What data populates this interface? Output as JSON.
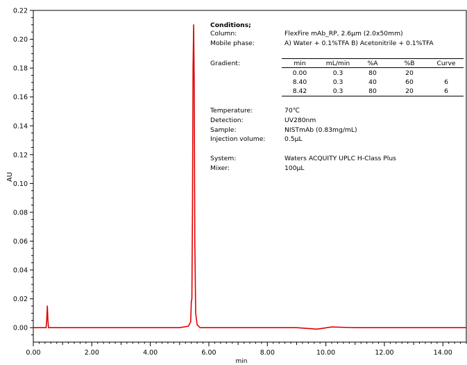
{
  "chart_data": {
    "type": "line",
    "xlabel": "min",
    "ylabel": "AU",
    "xlim": [
      0.0,
      14.8
    ],
    "ylim": [
      -0.01,
      0.22
    ],
    "x_ticks": [
      "0.00",
      "2.00",
      "4.00",
      "6.00",
      "8.00",
      "10.00",
      "12.00",
      "14.00"
    ],
    "y_ticks": [
      "0.00",
      "0.02",
      "0.04",
      "0.06",
      "0.08",
      "0.10",
      "0.12",
      "0.14",
      "0.16",
      "0.18",
      "0.20",
      "0.22"
    ],
    "line_color": "#e00000",
    "series": [
      {
        "x": [
          0.0,
          0.3,
          0.44,
          0.46,
          0.48,
          0.5,
          0.52,
          0.56,
          1.0,
          2.0,
          3.0,
          4.0,
          5.0,
          5.3,
          5.38,
          5.4,
          5.42,
          5.44,
          5.46,
          5.48,
          5.5,
          5.52,
          5.55,
          5.6,
          5.7,
          6.0,
          7.0,
          8.0,
          9.0,
          9.7,
          10.2,
          11.0,
          12.0,
          13.0,
          14.0,
          14.8
        ],
        "y": [
          0.0,
          0.0,
          0.0,
          0.006,
          0.015,
          0.005,
          0.0,
          0.0,
          0.0,
          0.0,
          0.0,
          0.0,
          0.0,
          0.001,
          0.004,
          0.018,
          0.02,
          0.08,
          0.18,
          0.21,
          0.17,
          0.06,
          0.01,
          0.002,
          0.0,
          0.0,
          0.0,
          0.0,
          0.0,
          -0.001,
          0.0005,
          0.0,
          0.0,
          0.0,
          0.0,
          0.0
        ]
      }
    ]
  },
  "conditions": {
    "heading": "Conditions;",
    "column_label": "Column:",
    "column_value": "FlexFire mAb_RP, 2.6μm (2.0x50mm)",
    "mobile_label": "Mobile phase:",
    "mobile_value": "A) Water + 0.1%TFA   B) Acetonitrile + 0.1%TFA",
    "gradient_label": "Gradient:",
    "gradient_headers": [
      "min",
      "mL/min",
      "%A",
      "%B",
      "Curve"
    ],
    "gradient_rows": [
      [
        "0.00",
        "0.3",
        "80",
        "20",
        ""
      ],
      [
        "8.40",
        "0.3",
        "40",
        "60",
        "6"
      ],
      [
        "8.42",
        "0.3",
        "80",
        "20",
        "6"
      ]
    ],
    "temperature_label": "Temperature:",
    "temperature_value": "70℃",
    "detection_label": "Detection:",
    "detection_value": "UV280nm",
    "sample_label": "Sample:",
    "sample_value": "NISTmAb (0.83mg/mL)",
    "injection_label": "Injection volume:",
    "injection_value": "0.5μL",
    "system_label": "System:",
    "system_value": "Waters ACQUITY UPLC H-Class Plus",
    "mixer_label": "Mixer:",
    "mixer_value": "100μL"
  }
}
